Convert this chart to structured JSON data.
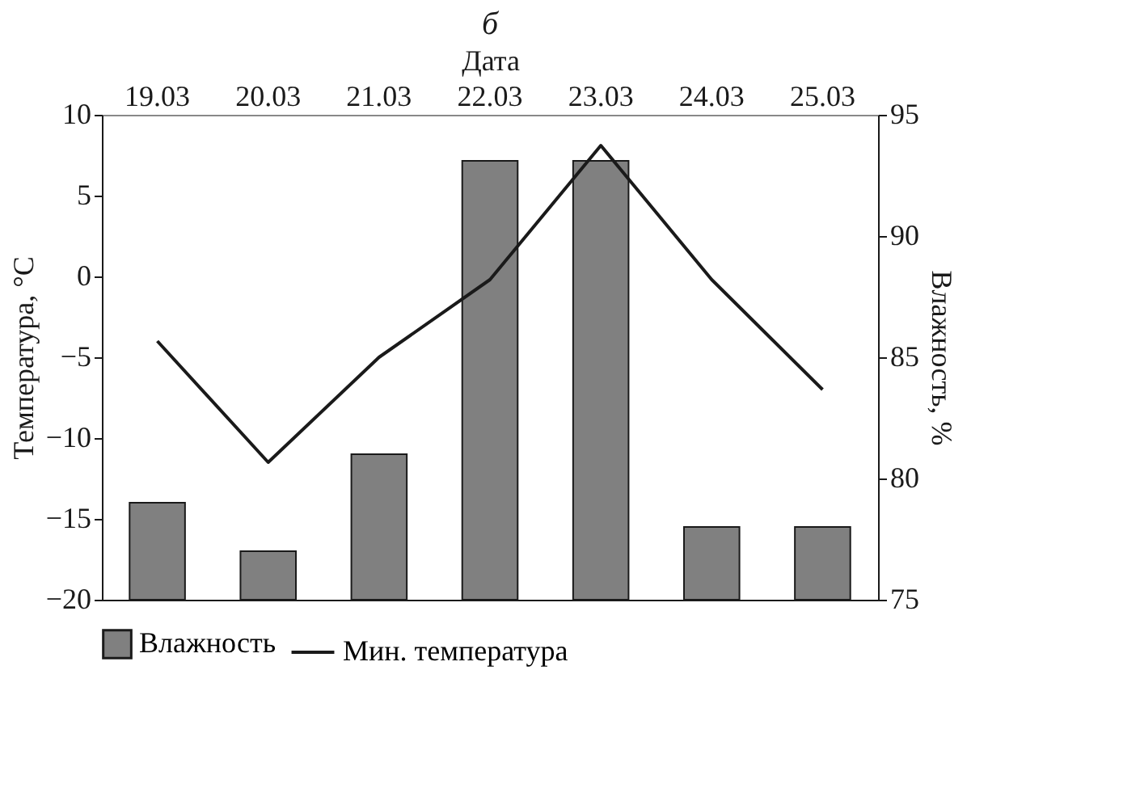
{
  "chart_data": {
    "type": "bar",
    "title": "б",
    "xlabel": "Дата",
    "ylabel": "Температура, °C",
    "y2label": "Влажность, %",
    "categories": [
      "19.03",
      "20.03",
      "21.03",
      "22.03",
      "23.03",
      "24.03",
      "25.03"
    ],
    "series": [
      {
        "name": "Влажность",
        "color": "#808080",
        "axis": "y2",
        "values": [
          79.0,
          77.0,
          81.0,
          93.1,
          93.1,
          78.0,
          78.0
        ]
      },
      {
        "name": "Мин. температура",
        "type": "line",
        "color": "#1a1a1a",
        "line_style": "solid",
        "values": [
          -4.0,
          -11.5,
          -5.0,
          -0.2,
          8.1,
          -0.2,
          -7.0
        ]
      }
    ],
    "ylim": [
      -20,
      10
    ],
    "yticks": [
      -20,
      -15,
      -10,
      -5,
      0,
      5,
      10
    ],
    "y2lim": [
      75,
      95
    ],
    "y2ticks": [
      75,
      80,
      85,
      90,
      95
    ],
    "grid": false,
    "legend": "bottom"
  }
}
